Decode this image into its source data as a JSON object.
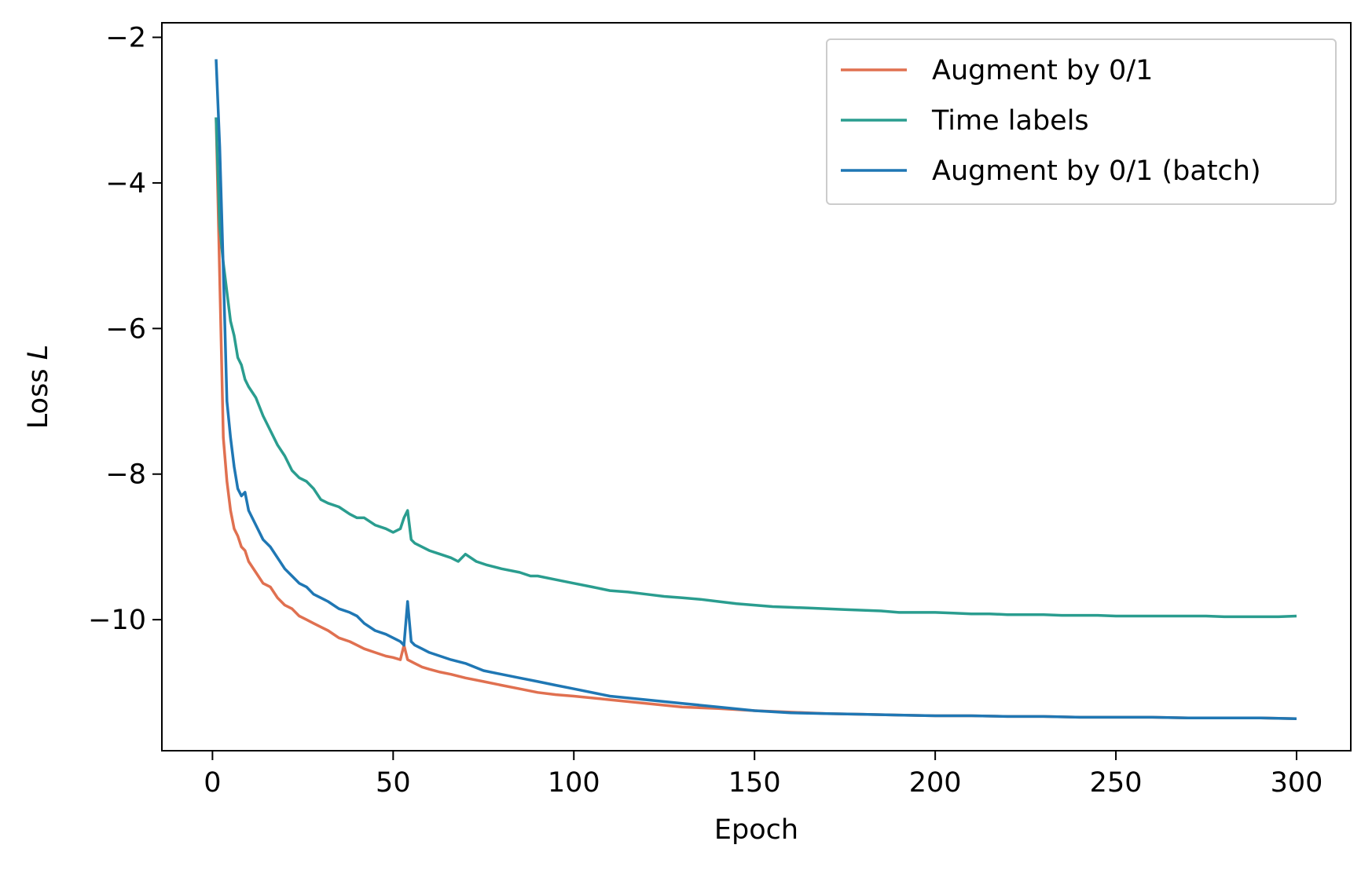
{
  "chart_data": {
    "type": "line",
    "xlabel": "Epoch",
    "ylabel_prefix": "Loss ",
    "ylabel_symbol": "L",
    "xlim": [
      -14,
      315
    ],
    "ylim": [
      -11.8,
      -1.8
    ],
    "xticks": [
      0,
      50,
      100,
      150,
      200,
      250,
      300
    ],
    "xtick_labels": [
      "0",
      "50",
      "100",
      "150",
      "200",
      "250",
      "300"
    ],
    "yticks": [
      -2,
      -4,
      -6,
      -8,
      -10
    ],
    "ytick_labels": [
      "−2",
      "−4",
      "−6",
      "−8",
      "−10"
    ],
    "legend_position": "top-right",
    "series": [
      {
        "name": "Augment by 0/1",
        "color": "#e07050",
        "x": [
          1,
          2,
          3,
          4,
          5,
          6,
          7,
          8,
          9,
          10,
          12,
          14,
          16,
          18,
          20,
          22,
          24,
          26,
          28,
          30,
          32,
          35,
          38,
          40,
          42,
          45,
          48,
          50,
          52,
          53,
          54,
          56,
          58,
          60,
          63,
          66,
          70,
          75,
          80,
          85,
          90,
          95,
          100,
          110,
          120,
          130,
          140,
          150,
          160,
          170,
          180,
          190,
          200,
          210,
          220,
          230,
          240,
          250,
          260,
          270,
          280,
          290,
          300
        ],
        "y": [
          -3.1,
          -5.3,
          -7.5,
          -8.1,
          -8.5,
          -8.75,
          -8.85,
          -9.0,
          -9.05,
          -9.2,
          -9.35,
          -9.5,
          -9.55,
          -9.7,
          -9.8,
          -9.85,
          -9.95,
          -10.0,
          -10.05,
          -10.1,
          -10.15,
          -10.25,
          -10.3,
          -10.35,
          -10.4,
          -10.45,
          -10.5,
          -10.52,
          -10.55,
          -10.35,
          -10.55,
          -10.6,
          -10.65,
          -10.68,
          -10.72,
          -10.75,
          -10.8,
          -10.85,
          -10.9,
          -10.95,
          -11.0,
          -11.03,
          -11.05,
          -11.1,
          -11.15,
          -11.2,
          -11.22,
          -11.25,
          -11.27,
          -11.29,
          -11.3,
          -11.31,
          -11.32,
          -11.32,
          -11.33,
          -11.33,
          -11.34,
          -11.34,
          -11.34,
          -11.35,
          -11.35,
          -11.35,
          -11.36
        ]
      },
      {
        "name": "Time labels",
        "color": "#2a9d8f",
        "x": [
          1,
          2,
          3,
          4,
          5,
          6,
          7,
          8,
          9,
          10,
          12,
          14,
          16,
          18,
          20,
          22,
          24,
          26,
          28,
          30,
          32,
          35,
          38,
          40,
          42,
          45,
          48,
          50,
          52,
          53,
          54,
          55,
          56,
          58,
          60,
          63,
          66,
          68,
          70,
          73,
          76,
          80,
          85,
          88,
          90,
          95,
          100,
          105,
          110,
          115,
          120,
          125,
          130,
          135,
          140,
          145,
          150,
          155,
          160,
          165,
          170,
          175,
          180,
          185,
          190,
          195,
          200,
          205,
          210,
          215,
          220,
          225,
          230,
          235,
          240,
          245,
          250,
          255,
          260,
          265,
          270,
          275,
          280,
          285,
          290,
          295,
          300
        ],
        "y": [
          -3.1,
          -4.6,
          -5.1,
          -5.5,
          -5.9,
          -6.1,
          -6.4,
          -6.5,
          -6.7,
          -6.8,
          -6.95,
          -7.2,
          -7.4,
          -7.6,
          -7.75,
          -7.95,
          -8.05,
          -8.1,
          -8.2,
          -8.35,
          -8.4,
          -8.45,
          -8.55,
          -8.6,
          -8.6,
          -8.7,
          -8.75,
          -8.8,
          -8.75,
          -8.6,
          -8.5,
          -8.9,
          -8.95,
          -9.0,
          -9.05,
          -9.1,
          -9.15,
          -9.2,
          -9.1,
          -9.2,
          -9.25,
          -9.3,
          -9.35,
          -9.4,
          -9.4,
          -9.45,
          -9.5,
          -9.55,
          -9.6,
          -9.62,
          -9.65,
          -9.68,
          -9.7,
          -9.72,
          -9.75,
          -9.78,
          -9.8,
          -9.82,
          -9.83,
          -9.84,
          -9.85,
          -9.86,
          -9.87,
          -9.88,
          -9.9,
          -9.9,
          -9.9,
          -9.91,
          -9.92,
          -9.92,
          -9.93,
          -9.93,
          -9.93,
          -9.94,
          -9.94,
          -9.94,
          -9.95,
          -9.95,
          -9.95,
          -9.95,
          -9.95,
          -9.95,
          -9.96,
          -9.96,
          -9.96,
          -9.96,
          -9.95
        ]
      },
      {
        "name": "Augment by 0/1 (batch)",
        "color": "#1f77b4",
        "x": [
          1,
          2,
          3,
          4,
          5,
          6,
          7,
          8,
          9,
          10,
          12,
          14,
          16,
          18,
          20,
          22,
          24,
          26,
          28,
          30,
          32,
          35,
          38,
          40,
          42,
          45,
          48,
          50,
          52,
          53,
          54,
          55,
          56,
          58,
          60,
          63,
          66,
          70,
          75,
          80,
          85,
          90,
          95,
          100,
          110,
          120,
          130,
          140,
          150,
          160,
          170,
          180,
          190,
          200,
          210,
          220,
          230,
          240,
          250,
          260,
          270,
          280,
          290,
          300
        ],
        "y": [
          -2.3,
          -3.5,
          -5.2,
          -7.0,
          -7.5,
          -7.9,
          -8.2,
          -8.3,
          -8.25,
          -8.5,
          -8.7,
          -8.9,
          -9.0,
          -9.15,
          -9.3,
          -9.4,
          -9.5,
          -9.55,
          -9.65,
          -9.7,
          -9.75,
          -9.85,
          -9.9,
          -9.95,
          -10.05,
          -10.15,
          -10.2,
          -10.25,
          -10.3,
          -10.35,
          -9.75,
          -10.3,
          -10.35,
          -10.4,
          -10.45,
          -10.5,
          -10.55,
          -10.6,
          -10.7,
          -10.75,
          -10.8,
          -10.85,
          -10.9,
          -10.95,
          -11.05,
          -11.1,
          -11.15,
          -11.2,
          -11.25,
          -11.28,
          -11.29,
          -11.3,
          -11.31,
          -11.32,
          -11.32,
          -11.33,
          -11.33,
          -11.34,
          -11.34,
          -11.34,
          -11.35,
          -11.35,
          -11.35,
          -11.36
        ]
      }
    ]
  }
}
